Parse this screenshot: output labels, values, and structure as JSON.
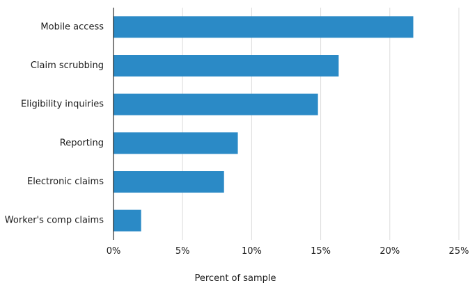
{
  "chart_data": {
    "type": "bar",
    "orientation": "horizontal",
    "categories": [
      "Mobile access",
      "Claim scrubbing",
      "Eligibility inquiries",
      "Reporting",
      "Electronic claims",
      "Worker's comp claims"
    ],
    "values": [
      21.7,
      16.3,
      14.8,
      9.0,
      8.0,
      2.0
    ],
    "xlabel": "Percent of sample",
    "ylabel": "",
    "xlim": [
      0,
      25
    ],
    "ticks": [
      0,
      5,
      10,
      15,
      20,
      25
    ],
    "tick_labels": [
      "0%",
      "5%",
      "10%",
      "15%",
      "20%",
      "25%"
    ],
    "grid": true,
    "bar_color": "#2b8ac6",
    "grid_color": "#dddddd",
    "axis_color": "#000000"
  }
}
